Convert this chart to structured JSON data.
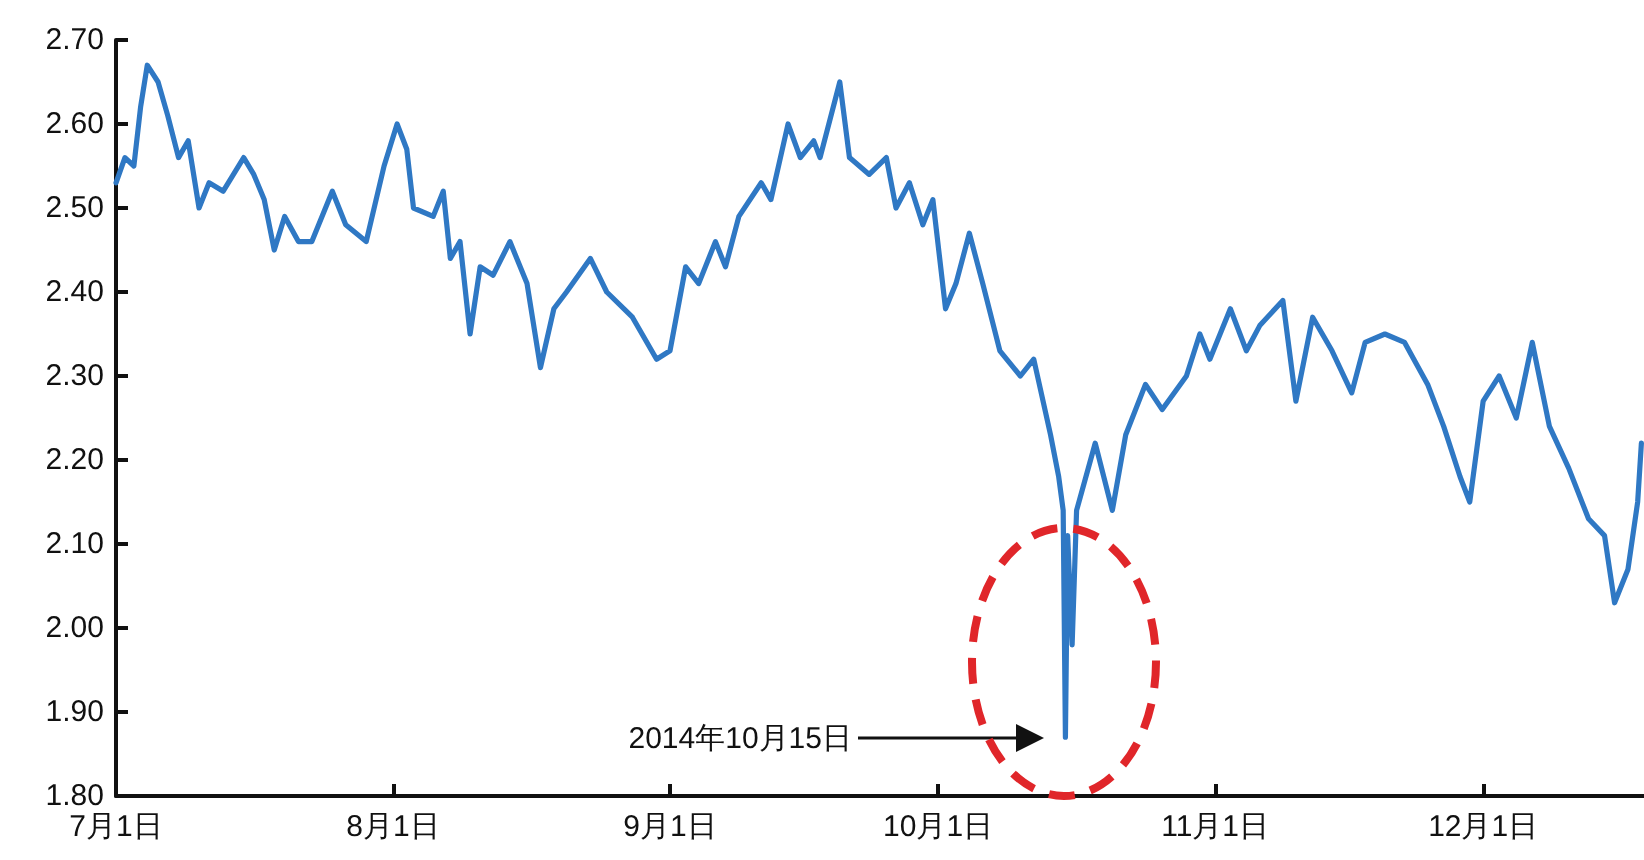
{
  "chart_data": {
    "type": "line",
    "color": "#2f78c4",
    "marker": "none",
    "line_style": "solid",
    "x": [
      "2014-07-01T00:00",
      "2014-07-02T00:00",
      "2014-07-03T00:00",
      "2014-07-03T18:00",
      "2014-07-04T12:00",
      "2014-07-05T17:00",
      "2014-07-06T19:00",
      "2014-07-08T00:00",
      "2014-07-09T02:00",
      "2014-07-10T07:00",
      "2014-07-11T10:00",
      "2014-07-13T00:00",
      "2014-07-15T07:00",
      "2014-07-16T10:00",
      "2014-07-17T14:00",
      "2014-07-18T17:00",
      "2014-07-19T21:00",
      "2014-07-21T10:00",
      "2014-07-22T22:00",
      "2014-07-25T05:00",
      "2014-07-26T17:00",
      "2014-07-29T00:00",
      "2014-07-31T00:00",
      "2014-08-01T11:00",
      "2014-08-02T13:00",
      "2014-08-03T07:00",
      "2014-08-05T12:00",
      "2014-08-06T15:00",
      "2014-08-07T10:00",
      "2014-08-08T12:00",
      "2014-08-09T15:00",
      "2014-08-10T18:00",
      "2014-08-12T05:00",
      "2014-08-14T02:00",
      "2014-08-16T00:00",
      "2014-08-17T12:00",
      "2014-08-19T00:00",
      "2014-08-20T10:00",
      "2014-08-23T02:00",
      "2014-08-24T22:00",
      "2014-08-27T19:00",
      "2014-08-30T12:00",
      "2014-09-01T00:00",
      "2014-09-02T18:00",
      "2014-09-04T05:00",
      "2014-09-06T02:00",
      "2014-09-07T05:00",
      "2014-09-08T17:00",
      "2014-09-11T05:00",
      "2014-09-12T07:00",
      "2014-09-14T05:00",
      "2014-09-15T14:00",
      "2014-09-17T02:00",
      "2014-09-17T19:00",
      "2014-09-20T00:00",
      "2014-09-21T02:00",
      "2014-09-23T07:00",
      "2014-09-25T05:00",
      "2014-09-26T07:00",
      "2014-09-27T19:00",
      "2014-09-29T07:00",
      "2014-09-30T10:00",
      "2014-10-01T20:00",
      "2014-10-03T00:00",
      "2014-10-04T12:00",
      "2014-10-06T00:00",
      "2014-10-07T22:00",
      "2014-10-10T05:00",
      "2014-10-11T17:00",
      "2014-10-13T14:00",
      "2014-10-14T12:00",
      "2014-10-15T00:00",
      "2014-10-15T06:00",
      "2014-10-15T12:00",
      "2014-10-16T00:00",
      "2014-10-16T12:00",
      "2014-10-18T14:00",
      "2014-10-20T12:00",
      "2014-10-22T00:00",
      "2014-10-24T05:00",
      "2014-10-26T02:00",
      "2014-10-28T19:00",
      "2014-10-30T07:00",
      "2014-10-31T10:00",
      "2014-11-02T17:00",
      "2014-11-04T12:00",
      "2014-11-06T00:00",
      "2014-11-08T14:00",
      "2014-11-10T01:00",
      "2014-11-11T22:00",
      "2014-11-14T02:00",
      "2014-11-16T07:00",
      "2014-11-17T19:00",
      "2014-11-20T00:00",
      "2014-11-22T05:00",
      "2014-11-24T19:00",
      "2014-11-26T14:00",
      "2014-11-28T10:00",
      "2014-11-29T12:00",
      "2014-12-01T00:00",
      "2014-12-02T19:00",
      "2014-12-04T17:00",
      "2014-12-06T12:00",
      "2014-12-08T10:00",
      "2014-12-10T14:00",
      "2014-12-12T19:00",
      "2014-12-14T14:00",
      "2014-12-15T17:00",
      "2014-12-17T05:00",
      "2014-12-18T07:00",
      "2014-12-18T17:00"
    ],
    "values": [
      2.53,
      2.56,
      2.55,
      2.62,
      2.67,
      2.65,
      2.61,
      2.56,
      2.58,
      2.5,
      2.53,
      2.52,
      2.56,
      2.54,
      2.51,
      2.45,
      2.49,
      2.46,
      2.46,
      2.52,
      2.48,
      2.46,
      2.55,
      2.6,
      2.57,
      2.5,
      2.49,
      2.52,
      2.44,
      2.46,
      2.35,
      2.43,
      2.42,
      2.46,
      2.41,
      2.31,
      2.38,
      2.4,
      2.44,
      2.4,
      2.37,
      2.32,
      2.33,
      2.43,
      2.41,
      2.46,
      2.43,
      2.49,
      2.53,
      2.51,
      2.6,
      2.56,
      2.58,
      2.56,
      2.65,
      2.56,
      2.54,
      2.56,
      2.5,
      2.53,
      2.48,
      2.51,
      2.38,
      2.41,
      2.47,
      2.41,
      2.33,
      2.3,
      2.32,
      2.23,
      2.18,
      2.14,
      1.87,
      2.11,
      1.98,
      2.14,
      2.22,
      2.14,
      2.23,
      2.29,
      2.26,
      2.3,
      2.35,
      2.32,
      2.38,
      2.33,
      2.36,
      2.39,
      2.27,
      2.37,
      2.33,
      2.28,
      2.34,
      2.35,
      2.34,
      2.29,
      2.24,
      2.18,
      2.15,
      2.27,
      2.3,
      2.25,
      2.34,
      2.24,
      2.19,
      2.13,
      2.11,
      2.03,
      2.07,
      2.15,
      2.22
    ],
    "xlim": [
      "2014-07-01",
      "2014-12-19"
    ],
    "xticks": [
      {
        "value": "2014-07-01",
        "label": "7月1日"
      },
      {
        "value": "2014-08-01",
        "label": "8月1日"
      },
      {
        "value": "2014-09-01",
        "label": "9月1日"
      },
      {
        "value": "2014-10-01",
        "label": "10月1日"
      },
      {
        "value": "2014-11-01",
        "label": "11月1日"
      },
      {
        "value": "2014-12-01",
        "label": "12月1日"
      }
    ],
    "ylim": [
      1.8,
      2.7
    ],
    "yticks": [
      {
        "value": 1.8,
        "label": "1.80"
      },
      {
        "value": 1.9,
        "label": "1.90"
      },
      {
        "value": 2.0,
        "label": "2.00"
      },
      {
        "value": 2.1,
        "label": "2.10"
      },
      {
        "value": 2.2,
        "label": "2.20"
      },
      {
        "value": 2.3,
        "label": "2.30"
      },
      {
        "value": 2.4,
        "label": "2.40"
      },
      {
        "value": 2.5,
        "label": "2.50"
      },
      {
        "value": 2.6,
        "label": "2.60"
      },
      {
        "value": 2.7,
        "label": "2.70"
      }
    ],
    "annotations": [
      "2014年10月15日"
    ]
  }
}
